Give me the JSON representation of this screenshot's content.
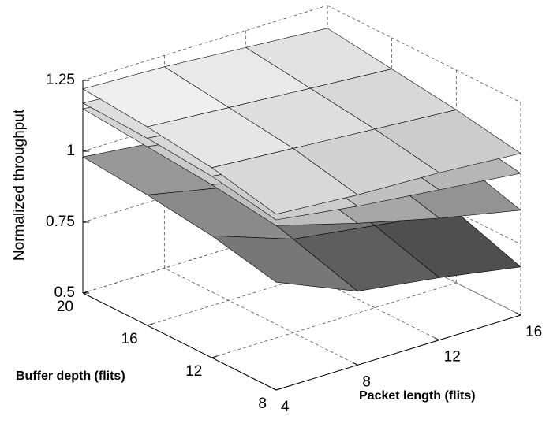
{
  "chart_data": {
    "type": "surface3d",
    "xlabel": "Packet length (flits)",
    "ylabel": "Buffer depth  (flits)",
    "zlabel": "Normalized throughput",
    "x": [
      4,
      8,
      12,
      16
    ],
    "y": [
      8,
      12,
      16,
      20
    ],
    "xlim": [
      4,
      16
    ],
    "ylim": [
      8,
      20
    ],
    "zlim": [
      0.5,
      1.25
    ],
    "xticks": [
      4,
      8,
      12,
      16
    ],
    "yticks": [
      8,
      12,
      16,
      20
    ],
    "zticks": [
      0.5,
      0.75,
      1,
      1.25
    ],
    "grid": true,
    "colormap": "gray",
    "series": [
      {
        "values": [
          [
            0.88,
            0.76,
            0.72,
            0.67
          ],
          [
            0.93,
            0.83,
            0.79,
            0.75
          ],
          [
            0.96,
            0.9,
            0.86,
            0.82
          ],
          [
            0.98,
            0.95,
            0.91,
            0.87
          ]
        ]
      },
      {
        "values": [
          [
            1.08,
            1.0,
            0.93,
            0.87
          ],
          [
            1.11,
            1.05,
            0.99,
            0.94
          ],
          [
            1.13,
            1.09,
            1.04,
            0.99
          ],
          [
            1.15,
            1.12,
            1.08,
            1.04
          ]
        ]
      },
      {
        "values": [
          [
            1.1,
            1.06,
            1.03,
            1.0
          ],
          [
            1.14,
            1.1,
            1.07,
            1.04
          ],
          [
            1.16,
            1.13,
            1.1,
            1.08
          ],
          [
            1.17,
            1.15,
            1.13,
            1.11
          ]
        ]
      },
      {
        "values": [
          [
            1.12,
            1.1,
            1.09,
            1.07
          ],
          [
            1.17,
            1.15,
            1.13,
            1.11
          ],
          [
            1.2,
            1.18,
            1.16,
            1.14
          ],
          [
            1.22,
            1.21,
            1.19,
            1.17
          ]
        ]
      }
    ]
  }
}
